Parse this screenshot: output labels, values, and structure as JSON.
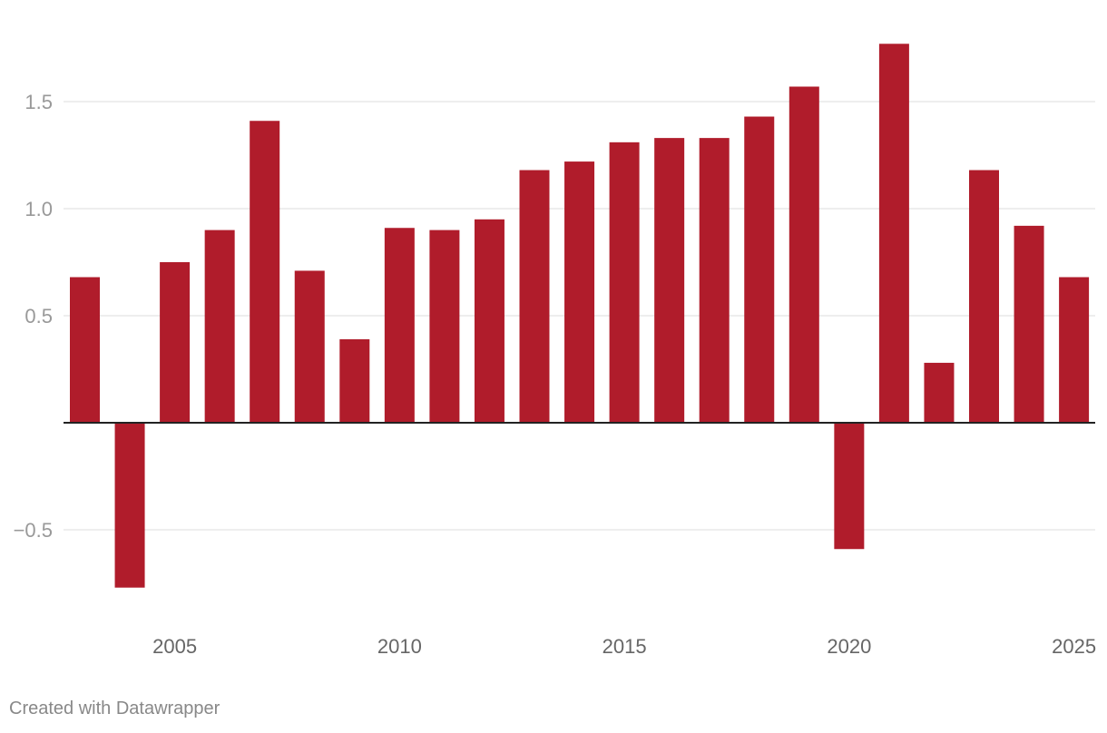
{
  "chart_data": {
    "type": "bar",
    "title": "",
    "xlabel": "",
    "ylabel": "",
    "categories": [
      "2003",
      "2004",
      "2005",
      "2006",
      "2007",
      "2008",
      "2009",
      "2010",
      "2011",
      "2012",
      "2013",
      "2014",
      "2015",
      "2016",
      "2017",
      "2018",
      "2019",
      "2020",
      "2021",
      "2022",
      "2023",
      "2024",
      "2025"
    ],
    "values": [
      0.68,
      -0.77,
      0.75,
      0.9,
      1.41,
      0.71,
      0.39,
      0.91,
      0.9,
      0.95,
      1.18,
      1.22,
      1.31,
      1.33,
      1.33,
      1.43,
      1.57,
      -0.59,
      1.77,
      0.28,
      1.18,
      0.92,
      0.68
    ],
    "ylim": [
      -0.85,
      1.8
    ],
    "yticks": [
      {
        "value": 1.5,
        "label": "1.5"
      },
      {
        "value": 1.0,
        "label": "1.0"
      },
      {
        "value": 0.5,
        "label": "0.5"
      },
      {
        "value": -0.5,
        "label": "−0.5"
      }
    ],
    "xticks": [
      "2005",
      "2010",
      "2015",
      "2020",
      "2025"
    ],
    "grid": true,
    "bar_color": "#b01c2b"
  },
  "footer": {
    "credit": "Created with Datawrapper"
  }
}
